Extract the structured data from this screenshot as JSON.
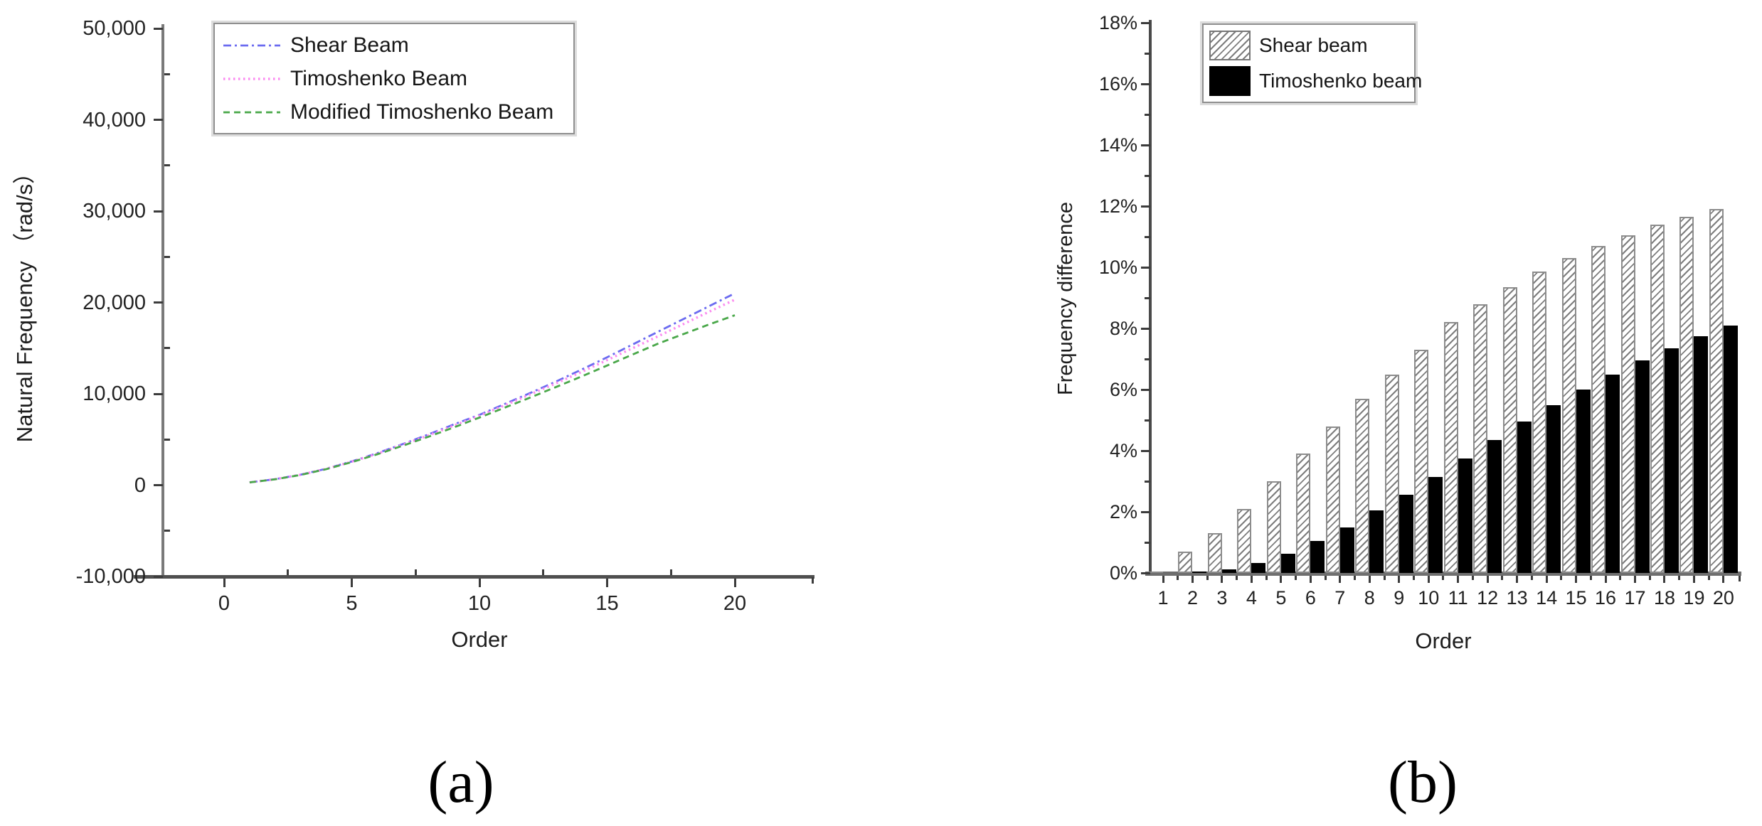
{
  "figure": {
    "caption_a": "(a)",
    "caption_b": "(b)"
  },
  "colors": {
    "shear_line": "#6b6bf0",
    "timoshenko_line": "#fb8cf0",
    "modified_line": "#4aa84a",
    "bar_black": "#000000",
    "bar_hatch_stroke": "#7d7d7d",
    "axis_gray": "#4f4f4f"
  },
  "chart_data": [
    {
      "type": "line",
      "title": "",
      "xlabel": "Order",
      "ylabel": "Natural Frequency （rad/s）",
      "xlim": [
        -3.5,
        23
      ],
      "ylim": [
        -10000,
        50000
      ],
      "grid": false,
      "legend_position": "top-left",
      "xtick_values": [
        0,
        5,
        10,
        15,
        20
      ],
      "xtick_labels": [
        "0",
        "5",
        "10",
        "15",
        "20"
      ],
      "ytick_values": [
        50000,
        40000,
        30000,
        20000,
        10000,
        0,
        -10000
      ],
      "ytick_labels": [
        "50,000",
        "40,000",
        "30,000",
        "20,000",
        "10,000",
        "0",
        "-10,000"
      ],
      "x": [
        1,
        2,
        3,
        4,
        5,
        6,
        7,
        8,
        9,
        10,
        11,
        12,
        13,
        14,
        15,
        16,
        17,
        18,
        19,
        20
      ],
      "series": [
        {
          "name": "Shear Beam",
          "color": "#6b6bf0",
          "dash": "dashdot",
          "values": [
            300,
            650,
            1150,
            1800,
            2600,
            3500,
            4500,
            5550,
            6650,
            7700,
            8900,
            10100,
            11350,
            12650,
            14000,
            15400,
            16800,
            18200,
            19600,
            21000
          ]
        },
        {
          "name": "Timoshenko Beam",
          "color": "#fb8cf0",
          "dash": "dot",
          "values": [
            300,
            650,
            1140,
            1780,
            2570,
            3450,
            4430,
            5450,
            6520,
            7600,
            8750,
            9950,
            11150,
            12400,
            13700,
            15000,
            16300,
            17650,
            19000,
            20300
          ]
        },
        {
          "name": "Modified Timoshenko Beam",
          "color": "#4aa84a",
          "dash": "dash",
          "values": [
            300,
            640,
            1120,
            1750,
            2520,
            3380,
            4320,
            5300,
            6330,
            7400,
            8500,
            9600,
            10750,
            11900,
            13100,
            14300,
            15500,
            16550,
            17600,
            18600
          ]
        }
      ]
    },
    {
      "type": "bar",
      "title": "",
      "xlabel": "Order",
      "ylabel": "Frequency difference",
      "ylim_percent": [
        0,
        18
      ],
      "grid": false,
      "legend_position": "top",
      "unit": "percent",
      "categories": [
        "1",
        "2",
        "3",
        "4",
        "5",
        "6",
        "7",
        "8",
        "9",
        "10",
        "11",
        "12",
        "13",
        "14",
        "15",
        "16",
        "17",
        "18",
        "19",
        "20"
      ],
      "ytick_values": [
        0,
        2,
        4,
        6,
        8,
        10,
        12,
        14,
        16,
        18
      ],
      "ytick_labels": [
        "0%",
        "2%",
        "4%",
        "6%",
        "8%",
        "10%",
        "12%",
        "14%",
        "16%",
        "18%"
      ],
      "series": [
        {
          "name": "Shear beam",
          "style": "hatched",
          "values": [
            0.05,
            0.7,
            1.3,
            2.1,
            3.0,
            3.9,
            4.8,
            5.7,
            6.5,
            7.3,
            8.2,
            8.8,
            9.35,
            9.85,
            10.3,
            10.7,
            11.05,
            11.4,
            11.65,
            11.9
          ]
        },
        {
          "name": "Timoshenko beam",
          "style": "solid-black",
          "values": [
            0.0,
            0.05,
            0.12,
            0.33,
            0.62,
            1.05,
            1.5,
            2.05,
            2.55,
            3.15,
            3.75,
            4.35,
            4.95,
            5.5,
            6.0,
            6.5,
            6.95,
            7.35,
            7.75,
            8.1
          ]
        }
      ]
    }
  ]
}
